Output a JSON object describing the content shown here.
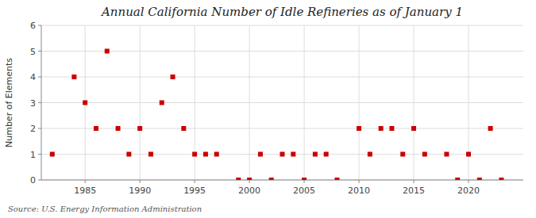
{
  "chart_data": {
    "type": "scatter",
    "title": "Annual California Number of Idle Refineries as of January 1",
    "ylabel": "Number of Elements",
    "source": "Source: U.S. Energy Information Administration",
    "x": [
      1982,
      1984,
      1985,
      1986,
      1987,
      1988,
      1989,
      1990,
      1991,
      1992,
      1993,
      1994,
      1995,
      1996,
      1997,
      1999,
      2000,
      2001,
      2002,
      2003,
      2004,
      2005,
      2006,
      2007,
      2008,
      2010,
      2011,
      2012,
      2013,
      2014,
      2015,
      2016,
      2018,
      2019,
      2020,
      2021,
      2022,
      2023
    ],
    "values": [
      1,
      4,
      3,
      2,
      5,
      2,
      1,
      2,
      1,
      3,
      4,
      2,
      1,
      1,
      1,
      0,
      0,
      1,
      0,
      1,
      1,
      0,
      1,
      1,
      0,
      2,
      1,
      2,
      2,
      1,
      2,
      1,
      1,
      0,
      1,
      0,
      2,
      0
    ],
    "color": "#cc0000",
    "marker": "square",
    "xlim": [
      1981,
      2025
    ],
    "ylim": [
      0,
      6
    ],
    "xticks": [
      1985,
      1990,
      1995,
      2000,
      2005,
      2010,
      2015,
      2020
    ],
    "yticks": [
      0,
      1,
      2,
      3,
      4,
      5,
      6
    ],
    "grid": true
  }
}
